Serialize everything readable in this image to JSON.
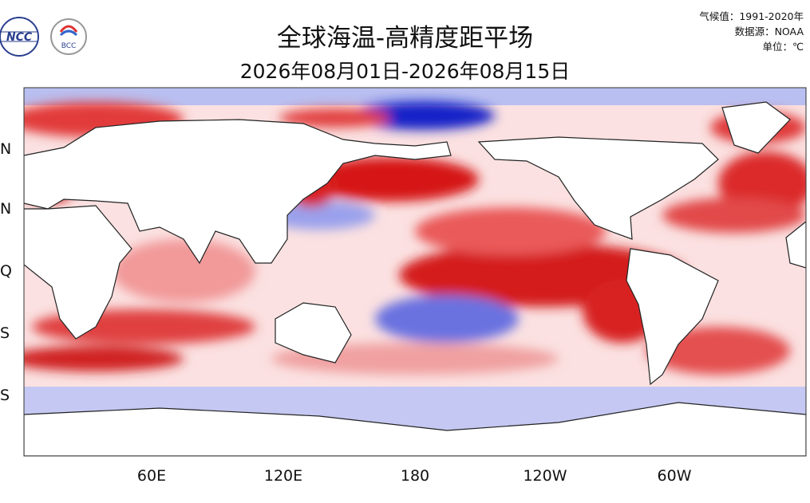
{
  "header": {
    "title": "全球海温-高精度距平场",
    "subtitle": "2026年08月01日-2026年08月15日",
    "notes": [
      "气候值：1991-2020年",
      "数据源：NOAA",
      "单位：℃"
    ]
  },
  "logos": [
    "NCC",
    "BCC"
  ],
  "map": {
    "x_labels": [
      "60E",
      "120E",
      "180",
      "120W",
      "60W"
    ],
    "y_labels": [
      "N",
      "N",
      "Q",
      "S",
      "S"
    ]
  }
}
